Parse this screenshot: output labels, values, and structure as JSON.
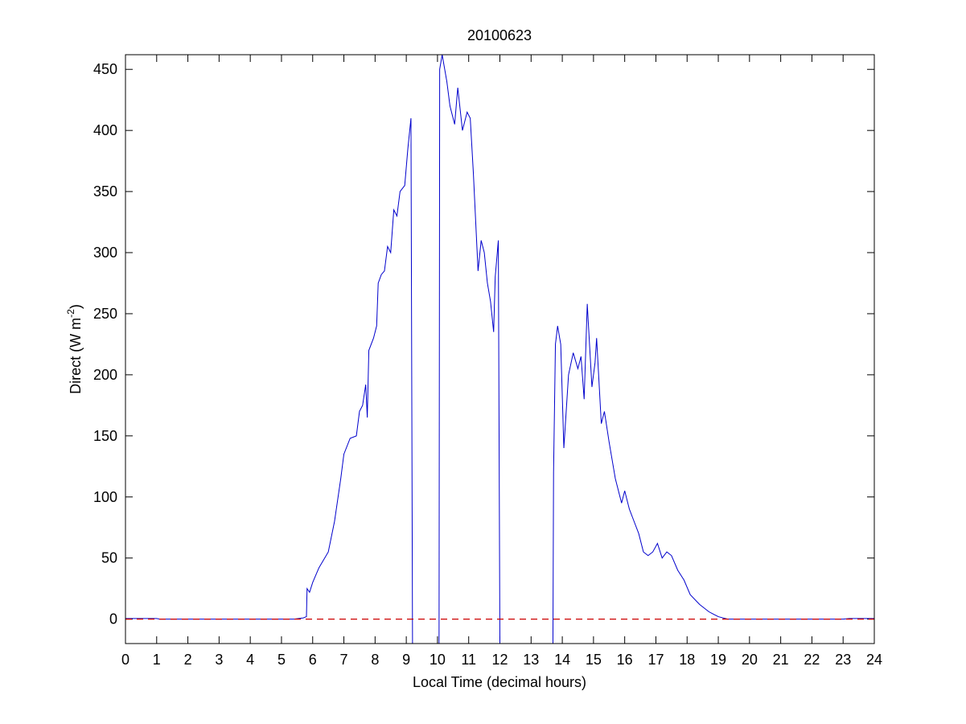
{
  "chart_data": {
    "type": "line",
    "title": "20100623",
    "xlabel": "Local Time (decimal hours)",
    "ylabel_parts": [
      "Direct (W m",
      "-2",
      ")"
    ],
    "xlim": [
      0,
      24
    ],
    "ylim": [
      -20,
      462
    ],
    "xticks": [
      0,
      1,
      2,
      3,
      4,
      5,
      6,
      7,
      8,
      9,
      10,
      11,
      12,
      13,
      14,
      15,
      16,
      17,
      18,
      19,
      20,
      21,
      22,
      23,
      24
    ],
    "yticks": [
      0,
      50,
      100,
      150,
      200,
      250,
      300,
      350,
      400,
      450
    ],
    "grid": false,
    "reference_line": {
      "value": 0,
      "color": "#cc0000",
      "style": "dashed"
    },
    "series": [
      {
        "color": "#0000cc",
        "x": [
          0,
          1,
          1.1,
          5.4,
          5.7,
          5.8,
          5.82,
          5.9,
          6.0,
          6.2,
          6.5,
          6.7,
          6.9,
          7.0,
          7.2,
          7.4,
          7.5,
          7.6,
          7.7,
          7.75,
          7.8,
          7.95,
          8.05,
          8.1,
          8.2,
          8.3,
          8.4,
          8.5,
          8.6,
          8.7,
          8.8,
          8.95,
          9.05,
          9.15,
          9.2,
          10.05,
          10.07,
          10.15,
          10.3,
          10.4,
          10.55,
          10.65,
          10.8,
          10.95,
          11.05,
          11.15,
          11.3,
          11.4,
          11.5,
          11.6,
          11.7,
          11.8,
          11.85,
          11.95,
          12.0,
          13.7,
          13.72,
          13.78,
          13.85,
          13.95,
          14.05,
          14.2,
          14.35,
          14.5,
          14.6,
          14.7,
          14.8,
          14.95,
          15.05,
          15.1,
          15.25,
          15.35,
          15.5,
          15.7,
          15.9,
          16.0,
          16.15,
          16.3,
          16.45,
          16.6,
          16.75,
          16.9,
          17.05,
          17.2,
          17.35,
          17.5,
          17.7,
          17.9,
          18.1,
          18.4,
          18.7,
          19.0,
          19.3,
          23.0,
          23.2,
          24.0
        ],
        "values": [
          0.5,
          0.5,
          0,
          0,
          1,
          2,
          25,
          22,
          30,
          42,
          55,
          80,
          115,
          135,
          148,
          150,
          170,
          175,
          192,
          165,
          220,
          230,
          240,
          275,
          282,
          285,
          305,
          300,
          335,
          330,
          350,
          355,
          385,
          410,
          -20,
          -20,
          450,
          462,
          440,
          420,
          405,
          435,
          400,
          415,
          410,
          365,
          285,
          310,
          300,
          275,
          260,
          235,
          280,
          310,
          -20,
          -20,
          120,
          225,
          240,
          225,
          140,
          200,
          218,
          205,
          215,
          180,
          258,
          190,
          210,
          230,
          160,
          170,
          145,
          115,
          95,
          105,
          90,
          80,
          70,
          55,
          52,
          55,
          62,
          50,
          55,
          52,
          40,
          32,
          20,
          12,
          6,
          2,
          0,
          0,
          0.5,
          0.5
        ]
      }
    ]
  }
}
